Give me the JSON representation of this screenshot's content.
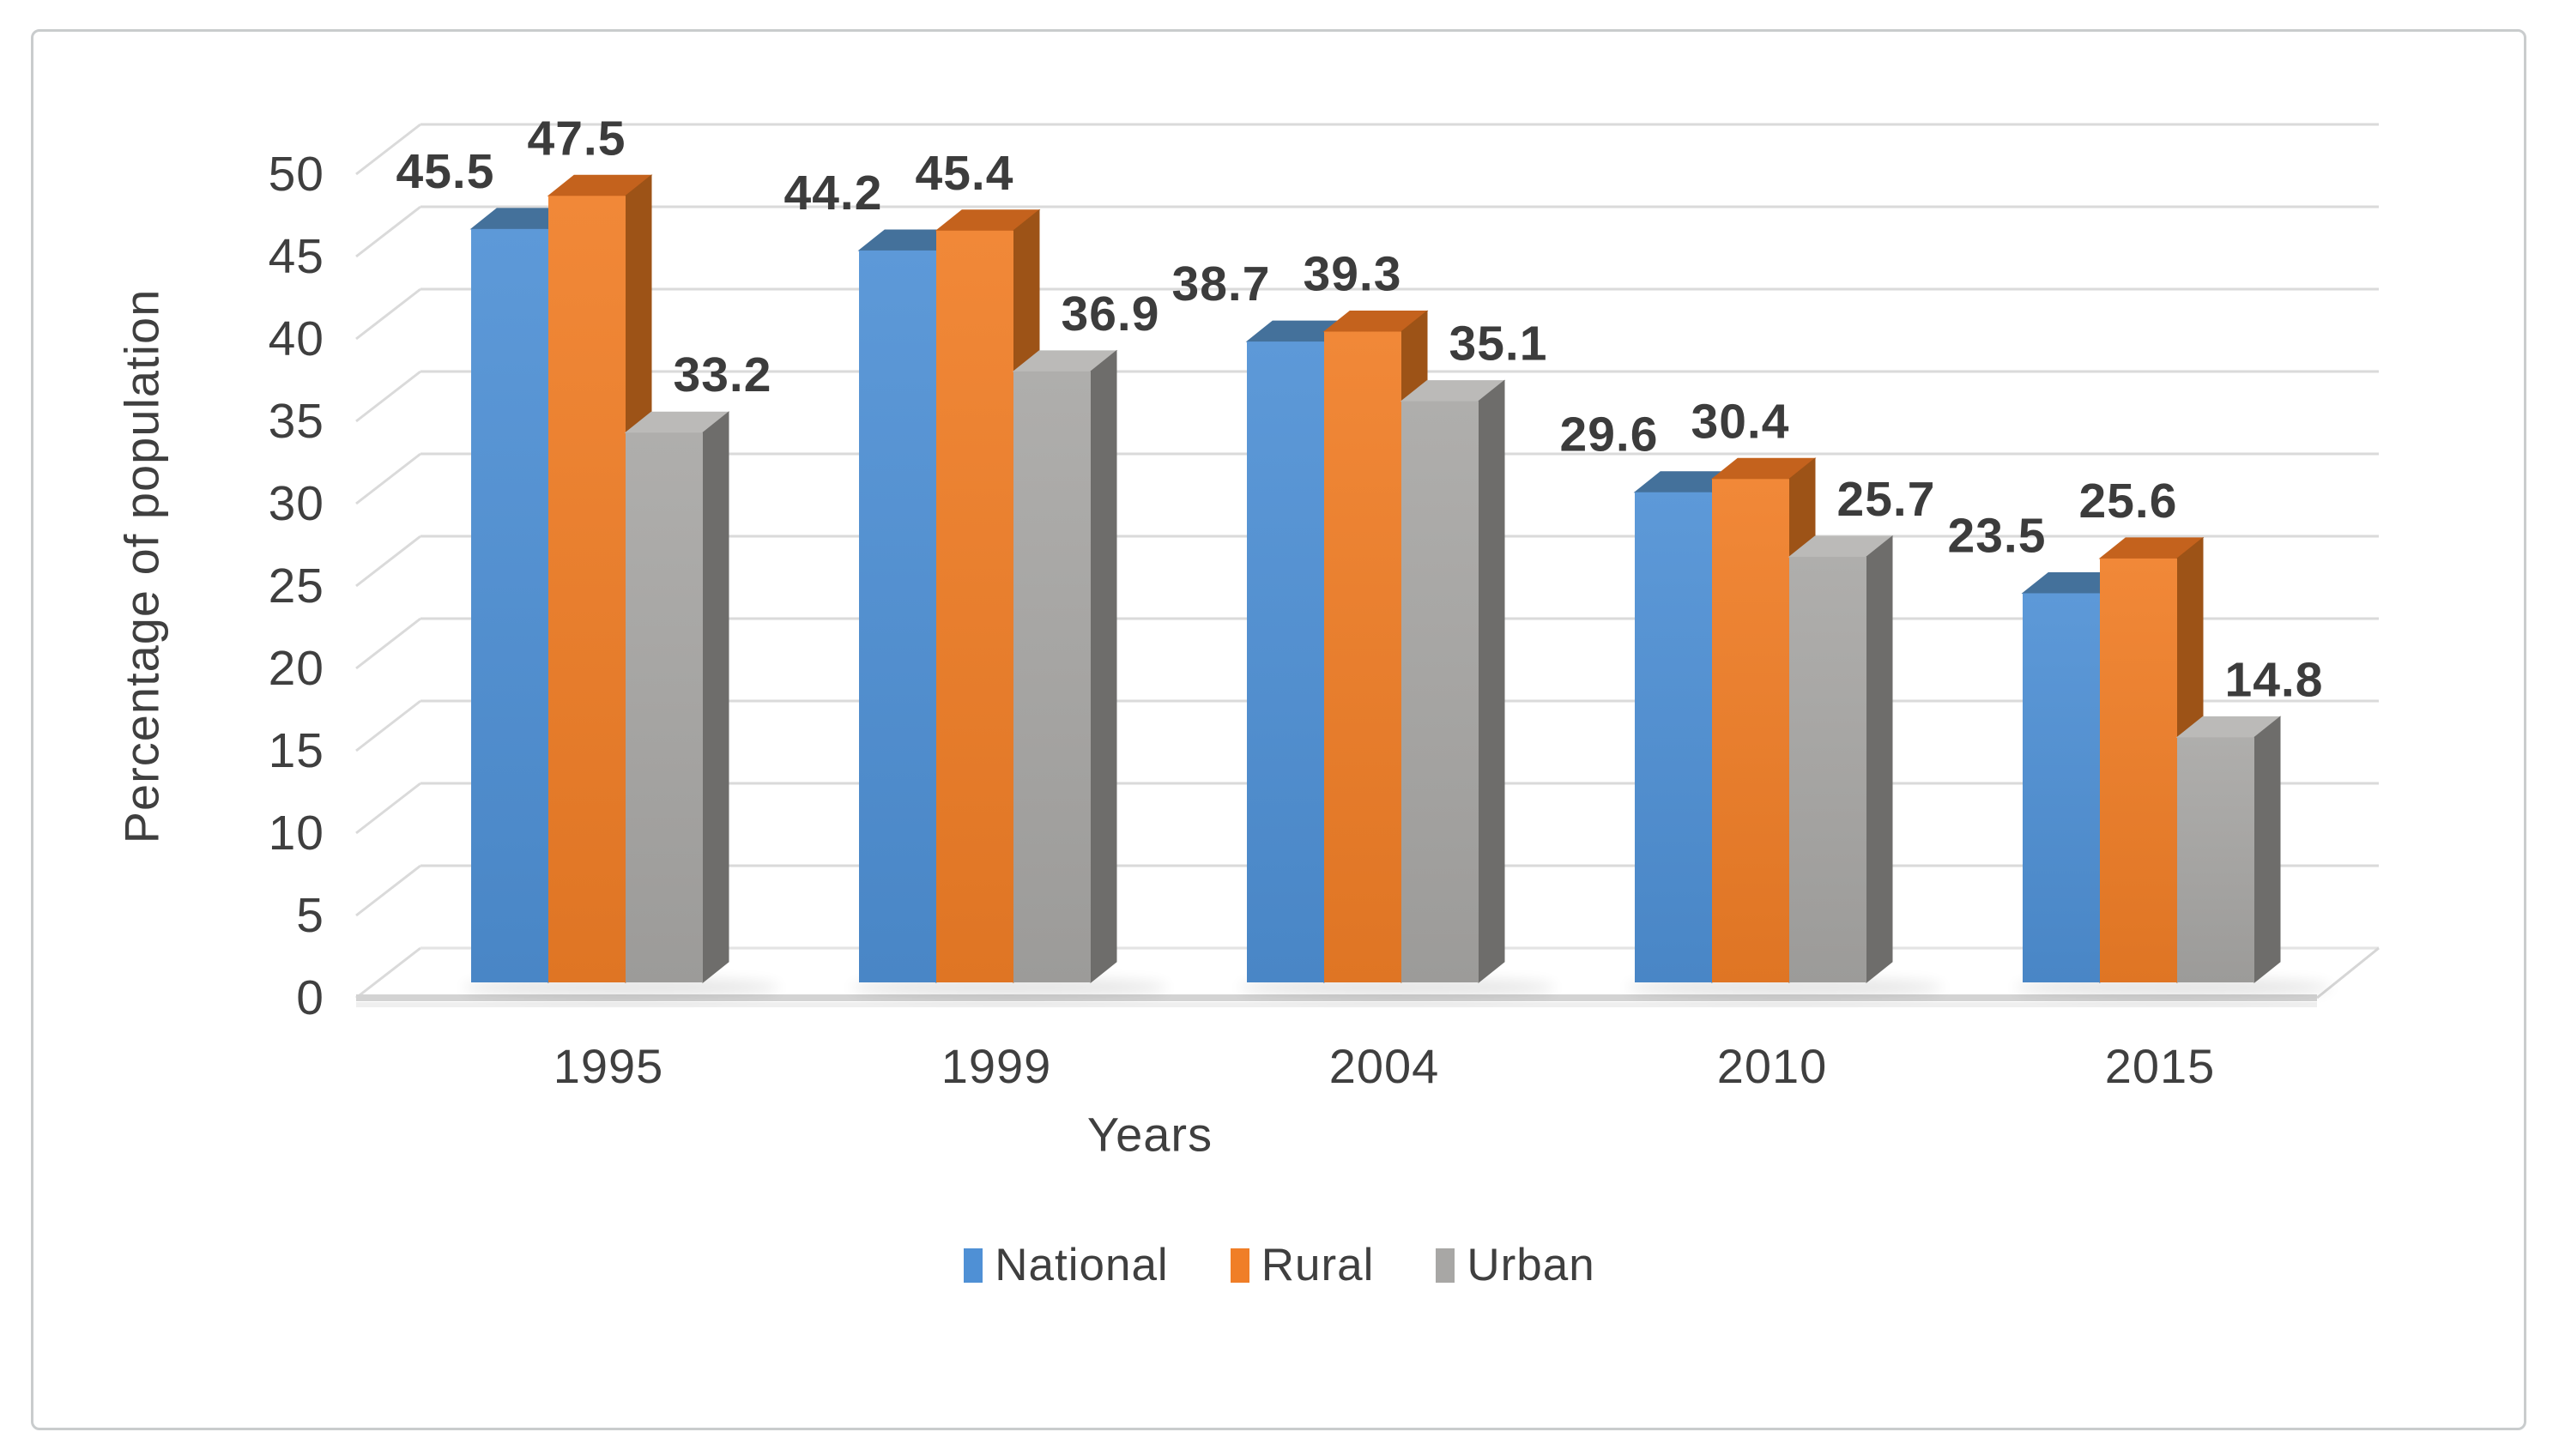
{
  "frame": {
    "background": "#ffffff",
    "border_color": "#c9cccd"
  },
  "chart_data": {
    "type": "bar",
    "variant": "3d-clustered-column",
    "title": "",
    "xlabel": "Years",
    "ylabel": "Percentage of population",
    "categories": [
      "1995",
      "1999",
      "2004",
      "2010",
      "2015"
    ],
    "series": [
      {
        "name": "National",
        "values": [
          45.5,
          44.2,
          38.7,
          29.6,
          23.5
        ],
        "color": "#4f90d5",
        "top_color": "#44719b",
        "side_color": "#35608c"
      },
      {
        "name": "Rural",
        "values": [
          47.5,
          45.4,
          39.3,
          30.4,
          25.6
        ],
        "color": "#f07e27",
        "top_color": "#c4621d",
        "side_color": "#9d5317"
      },
      {
        "name": "Urban",
        "values": [
          33.2,
          36.9,
          35.1,
          25.7,
          14.8
        ],
        "color": "#a8a7a5",
        "top_color": "#bbbab8",
        "side_color": "#6e6d6b"
      }
    ],
    "ylim": [
      0,
      50
    ],
    "yticks": [
      0,
      5,
      10,
      15,
      20,
      25,
      30,
      35,
      40,
      45,
      50
    ],
    "grid": true,
    "gridline_color": "#dadada",
    "text_color": "#3f3f3f",
    "legend_position": "bottom",
    "data_labels": true
  }
}
